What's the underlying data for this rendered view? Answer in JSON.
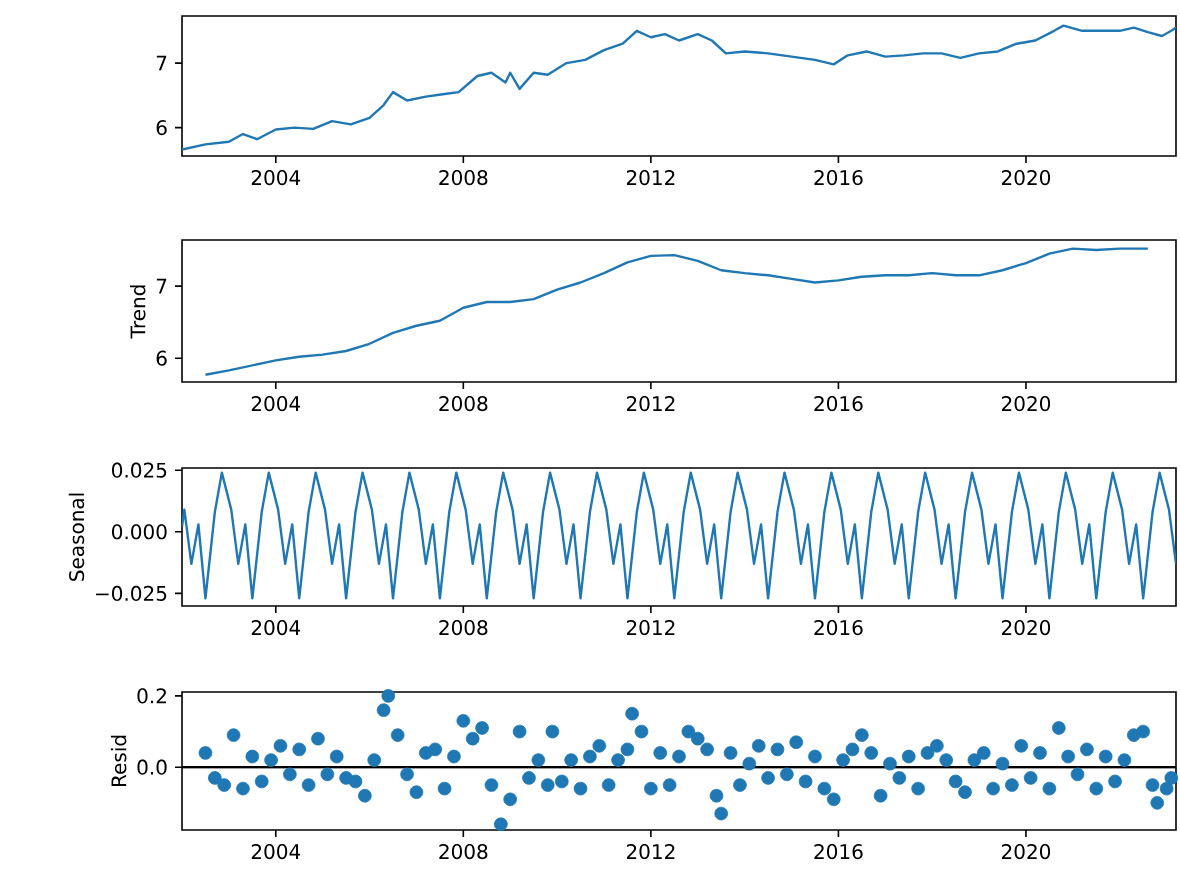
{
  "chart_data": [
    {
      "type": "line",
      "color": "#1f77b4",
      "xlim": [
        2002.0,
        2023.2
      ],
      "ylim": [
        5.56,
        7.73
      ],
      "xticks": [
        2004,
        2008,
        2012,
        2016,
        2020
      ],
      "yticks": [
        6,
        7
      ],
      "x": [
        2002.0,
        2002.5,
        2003.0,
        2003.3,
        2003.6,
        2004.0,
        2004.4,
        2004.8,
        2005.2,
        2005.6,
        2006.0,
        2006.3,
        2006.5,
        2006.8,
        2007.2,
        2007.6,
        2007.9,
        2008.3,
        2008.6,
        2008.9,
        2009.0,
        2009.2,
        2009.5,
        2009.8,
        2010.2,
        2010.6,
        2011.0,
        2011.4,
        2011.7,
        2012.0,
        2012.3,
        2012.6,
        2013.0,
        2013.3,
        2013.6,
        2014.0,
        2014.5,
        2015.0,
        2015.5,
        2015.9,
        2016.2,
        2016.6,
        2017.0,
        2017.4,
        2017.8,
        2018.2,
        2018.6,
        2019.0,
        2019.4,
        2019.8,
        2020.2,
        2020.6,
        2020.8,
        2021.2,
        2021.6,
        2022.0,
        2022.3,
        2022.6,
        2022.9,
        2023.1,
        2023.2
      ],
      "values": [
        5.66,
        5.74,
        5.78,
        5.9,
        5.82,
        5.97,
        6.0,
        5.98,
        6.1,
        6.05,
        6.15,
        6.35,
        6.55,
        6.42,
        6.48,
        6.52,
        6.55,
        6.8,
        6.85,
        6.7,
        6.85,
        6.6,
        6.85,
        6.82,
        7.0,
        7.05,
        7.2,
        7.3,
        7.5,
        7.4,
        7.45,
        7.35,
        7.45,
        7.35,
        7.15,
        7.18,
        7.15,
        7.1,
        7.05,
        6.98,
        7.12,
        7.18,
        7.1,
        7.12,
        7.15,
        7.15,
        7.08,
        7.15,
        7.18,
        7.3,
        7.35,
        7.5,
        7.58,
        7.5,
        7.5,
        7.5,
        7.55,
        7.48,
        7.42,
        7.5,
        7.55
      ]
    },
    {
      "type": "line",
      "color": "#1f77b4",
      "ylabel": "Trend",
      "xlim": [
        2002.0,
        2023.2
      ],
      "ylim": [
        5.67,
        7.64
      ],
      "xticks": [
        2004,
        2008,
        2012,
        2016,
        2020
      ],
      "yticks": [
        6,
        7
      ],
      "x": [
        2002.5,
        2003.0,
        2003.5,
        2004.0,
        2004.5,
        2005.0,
        2005.5,
        2006.0,
        2006.5,
        2007.0,
        2007.5,
        2008.0,
        2008.5,
        2009.0,
        2009.5,
        2010.0,
        2010.5,
        2011.0,
        2011.5,
        2012.0,
        2012.5,
        2013.0,
        2013.5,
        2014.0,
        2014.5,
        2015.0,
        2015.5,
        2016.0,
        2016.5,
        2017.0,
        2017.5,
        2018.0,
        2018.5,
        2019.0,
        2019.5,
        2020.0,
        2020.5,
        2021.0,
        2021.5,
        2022.0,
        2022.6
      ],
      "values": [
        5.77,
        5.83,
        5.9,
        5.97,
        6.02,
        6.05,
        6.1,
        6.2,
        6.35,
        6.45,
        6.52,
        6.7,
        6.78,
        6.78,
        6.82,
        6.95,
        7.05,
        7.18,
        7.33,
        7.42,
        7.43,
        7.35,
        7.22,
        7.18,
        7.15,
        7.1,
        7.05,
        7.08,
        7.13,
        7.15,
        7.15,
        7.18,
        7.15,
        7.15,
        7.22,
        7.32,
        7.45,
        7.52,
        7.5,
        7.52,
        7.52
      ]
    },
    {
      "type": "line",
      "color": "#1f77b4",
      "ylabel": "Seasonal",
      "xlim": [
        2002.0,
        2023.2
      ],
      "ylim": [
        -0.0301,
        0.0259
      ],
      "xticks": [
        2004,
        2008,
        2012,
        2016,
        2020
      ],
      "yticks": [
        {
          "value": -0.025,
          "label": "−0.025"
        },
        {
          "value": 0,
          "label": "0.000"
        },
        {
          "value": 0.025,
          "label": "0.025"
        }
      ],
      "x": [
        2002.0,
        2002.05,
        2002.2,
        2002.35,
        2002.5,
        2002.7,
        2002.85,
        2003.05,
        2003.2,
        2003.35,
        2003.5,
        2003.7,
        2003.85,
        2004.05,
        2004.2,
        2004.35,
        2004.5,
        2004.7,
        2004.85,
        2005.05,
        2005.2,
        2005.35,
        2005.5,
        2005.7,
        2005.85,
        2006.05,
        2006.2,
        2006.35,
        2006.5,
        2006.7,
        2006.85,
        2007.05,
        2007.2,
        2007.35,
        2007.5,
        2007.7,
        2007.85,
        2008.05,
        2008.2,
        2008.35,
        2008.5,
        2008.7,
        2008.85,
        2009.05,
        2009.2,
        2009.35,
        2009.5,
        2009.7,
        2009.85,
        2010.05,
        2010.2,
        2010.35,
        2010.5,
        2010.7,
        2010.85,
        2011.05,
        2011.2,
        2011.35,
        2011.5,
        2011.7,
        2011.85,
        2012.05,
        2012.2,
        2012.35,
        2012.5,
        2012.7,
        2012.85,
        2013.05,
        2013.2,
        2013.35,
        2013.5,
        2013.7,
        2013.85,
        2014.05,
        2014.2,
        2014.35,
        2014.5,
        2014.7,
        2014.85,
        2015.05,
        2015.2,
        2015.35,
        2015.5,
        2015.7,
        2015.85,
        2016.05,
        2016.2,
        2016.35,
        2016.5,
        2016.7,
        2016.85,
        2017.05,
        2017.2,
        2017.35,
        2017.5,
        2017.7,
        2017.85,
        2018.05,
        2018.2,
        2018.35,
        2018.5,
        2018.7,
        2018.85,
        2019.05,
        2019.2,
        2019.35,
        2019.5,
        2019.7,
        2019.85,
        2020.05,
        2020.2,
        2020.35,
        2020.5,
        2020.7,
        2020.85,
        2021.05,
        2021.2,
        2021.35,
        2021.5,
        2021.7,
        2021.85,
        2022.05,
        2022.2,
        2022.35,
        2022.5,
        2022.7,
        2022.85,
        2023.05,
        2023.2
      ],
      "values": [
        0.002,
        0.009,
        -0.013,
        0.003,
        -0.027,
        0.008,
        0.024,
        0.009,
        -0.013,
        0.003,
        -0.027,
        0.008,
        0.024,
        0.009,
        -0.013,
        0.003,
        -0.027,
        0.008,
        0.024,
        0.009,
        -0.013,
        0.003,
        -0.027,
        0.008,
        0.024,
        0.009,
        -0.013,
        0.003,
        -0.027,
        0.008,
        0.024,
        0.009,
        -0.013,
        0.003,
        -0.027,
        0.008,
        0.024,
        0.009,
        -0.013,
        0.003,
        -0.027,
        0.008,
        0.024,
        0.009,
        -0.013,
        0.003,
        -0.027,
        0.008,
        0.024,
        0.009,
        -0.013,
        0.003,
        -0.027,
        0.008,
        0.024,
        0.009,
        -0.013,
        0.003,
        -0.027,
        0.008,
        0.024,
        0.009,
        -0.013,
        0.003,
        -0.027,
        0.008,
        0.024,
        0.009,
        -0.013,
        0.003,
        -0.027,
        0.008,
        0.024,
        0.009,
        -0.013,
        0.003,
        -0.027,
        0.008,
        0.024,
        0.009,
        -0.013,
        0.003,
        -0.027,
        0.008,
        0.024,
        0.009,
        -0.013,
        0.003,
        -0.027,
        0.008,
        0.024,
        0.009,
        -0.013,
        0.003,
        -0.027,
        0.008,
        0.024,
        0.009,
        -0.013,
        0.003,
        -0.027,
        0.008,
        0.024,
        0.009,
        -0.013,
        0.003,
        -0.027,
        0.008,
        0.024,
        0.009,
        -0.013,
        0.003,
        -0.027,
        0.008,
        0.024,
        0.009,
        -0.013,
        0.003,
        -0.027,
        0.008,
        0.024,
        0.009,
        -0.013,
        0.003,
        -0.027,
        0.008,
        0.024,
        0.009,
        -0.013
      ]
    },
    {
      "type": "scatter",
      "color": "#1f77b4",
      "marker": "circle",
      "ylabel": "Resid",
      "xlim": [
        2002.0,
        2023.2
      ],
      "ylim": [
        -0.176,
        0.211
      ],
      "xticks": [
        2004,
        2008,
        2012,
        2016,
        2020
      ],
      "yticks": [
        {
          "value": 0,
          "label": "0.0"
        },
        0.2
      ],
      "ref_lines": [
        {
          "axis": "y",
          "value": 0,
          "color": "#000000"
        }
      ],
      "x": [
        2002.5,
        2002.7,
        2002.9,
        2003.1,
        2003.3,
        2003.5,
        2003.7,
        2003.9,
        2004.1,
        2004.3,
        2004.5,
        2004.7,
        2004.9,
        2005.1,
        2005.3,
        2005.5,
        2005.7,
        2005.9,
        2006.1,
        2006.3,
        2006.4,
        2006.6,
        2006.8,
        2007.0,
        2007.2,
        2007.4,
        2007.6,
        2007.8,
        2008.0,
        2008.2,
        2008.4,
        2008.6,
        2008.8,
        2009.0,
        2009.2,
        2009.4,
        2009.6,
        2009.8,
        2009.9,
        2010.1,
        2010.3,
        2010.5,
        2010.7,
        2010.9,
        2011.1,
        2011.3,
        2011.5,
        2011.6,
        2011.8,
        2012.0,
        2012.2,
        2012.4,
        2012.6,
        2012.8,
        2013.0,
        2013.2,
        2013.4,
        2013.5,
        2013.7,
        2013.9,
        2014.1,
        2014.3,
        2014.5,
        2014.7,
        2014.9,
        2015.1,
        2015.3,
        2015.5,
        2015.7,
        2015.9,
        2016.1,
        2016.3,
        2016.5,
        2016.7,
        2016.9,
        2017.1,
        2017.3,
        2017.5,
        2017.7,
        2017.9,
        2018.1,
        2018.3,
        2018.5,
        2018.7,
        2018.9,
        2019.1,
        2019.3,
        2019.5,
        2019.7,
        2019.9,
        2020.1,
        2020.3,
        2020.5,
        2020.7,
        2020.9,
        2021.1,
        2021.3,
        2021.5,
        2021.7,
        2021.9,
        2022.1,
        2022.3,
        2022.5,
        2022.7,
        2022.8,
        2023.0,
        2023.1
      ],
      "values": [
        0.04,
        -0.03,
        -0.05,
        0.09,
        -0.06,
        0.03,
        -0.04,
        0.02,
        0.06,
        -0.02,
        0.05,
        -0.05,
        0.08,
        -0.02,
        0.03,
        -0.03,
        -0.04,
        -0.08,
        0.02,
        0.16,
        0.2,
        0.09,
        -0.02,
        -0.07,
        0.04,
        0.05,
        -0.06,
        0.03,
        0.13,
        0.08,
        0.11,
        -0.05,
        -0.16,
        -0.09,
        0.1,
        -0.03,
        0.02,
        -0.05,
        0.1,
        -0.04,
        0.02,
        -0.06,
        0.03,
        0.06,
        -0.05,
        0.02,
        0.05,
        0.15,
        0.1,
        -0.06,
        0.04,
        -0.05,
        0.03,
        0.1,
        0.08,
        0.05,
        -0.08,
        -0.13,
        0.04,
        -0.05,
        0.01,
        0.06,
        -0.03,
        0.05,
        -0.02,
        0.07,
        -0.04,
        0.03,
        -0.06,
        -0.09,
        0.02,
        0.05,
        0.09,
        0.04,
        -0.08,
        0.01,
        -0.03,
        0.03,
        -0.06,
        0.04,
        0.06,
        0.02,
        -0.04,
        -0.07,
        0.02,
        0.04,
        -0.06,
        0.01,
        -0.05,
        0.06,
        -0.03,
        0.04,
        -0.06,
        0.11,
        0.03,
        -0.02,
        0.05,
        -0.06,
        0.03,
        -0.04,
        0.02,
        0.09,
        0.1,
        -0.05,
        -0.1,
        -0.06,
        -0.03
      ]
    }
  ]
}
